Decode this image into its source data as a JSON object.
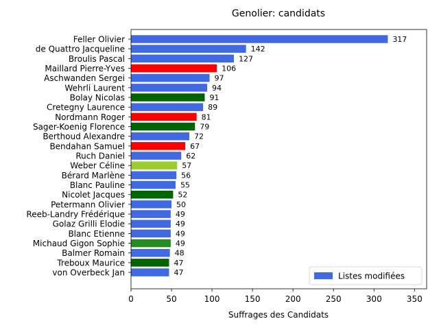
{
  "chart_data": {
    "type": "bar",
    "orientation": "horizontal",
    "title": "Genolier: candidats",
    "xlabel": "Suffrages des Candidats",
    "ylabel": "",
    "xlim": [
      0,
      365
    ],
    "x_ticks": [
      0,
      50,
      100,
      150,
      200,
      250,
      300,
      350
    ],
    "grid": false,
    "legend": {
      "position": "bottom-right",
      "entries": [
        {
          "label": "Listes modifiées",
          "color": "#4169e1"
        }
      ]
    },
    "bars": [
      {
        "name": "Feller Olivier",
        "value": 317,
        "color": "#4169e1"
      },
      {
        "name": "de Quattro Jacqueline",
        "value": 142,
        "color": "#4169e1"
      },
      {
        "name": "Broulis Pascal",
        "value": 127,
        "color": "#4169e1"
      },
      {
        "name": "Maillard Pierre-Yves",
        "value": 106,
        "color": "#ff0000"
      },
      {
        "name": "Aschwanden Sergei",
        "value": 97,
        "color": "#4169e1"
      },
      {
        "name": "Wehrli Laurent",
        "value": 94,
        "color": "#4169e1"
      },
      {
        "name": "Bolay Nicolas",
        "value": 91,
        "color": "#006400"
      },
      {
        "name": "Cretegny Laurence",
        "value": 89,
        "color": "#4169e1"
      },
      {
        "name": "Nordmann Roger",
        "value": 81,
        "color": "#ff0000"
      },
      {
        "name": "Sager-Koenig Florence",
        "value": 79,
        "color": "#006400"
      },
      {
        "name": "Berthoud Alexandre",
        "value": 72,
        "color": "#4169e1"
      },
      {
        "name": "Bendahan Samuel",
        "value": 67,
        "color": "#ff0000"
      },
      {
        "name": "Ruch Daniel",
        "value": 62,
        "color": "#4169e1"
      },
      {
        "name": "Weber Céline",
        "value": 57,
        "color": "#9acd32"
      },
      {
        "name": "Bérard Marlène",
        "value": 56,
        "color": "#4169e1"
      },
      {
        "name": "Blanc Pauline",
        "value": 55,
        "color": "#4169e1"
      },
      {
        "name": "Nicolet Jacques",
        "value": 52,
        "color": "#006400"
      },
      {
        "name": "Petermann Olivier",
        "value": 50,
        "color": "#4169e1"
      },
      {
        "name": "Reeb-Landry Frédérique",
        "value": 49,
        "color": "#4169e1"
      },
      {
        "name": "Golaz Grilli Elodie",
        "value": 49,
        "color": "#4169e1"
      },
      {
        "name": "Blanc Etienne",
        "value": 49,
        "color": "#4169e1"
      },
      {
        "name": "Michaud Gigon Sophie",
        "value": 49,
        "color": "#228b22"
      },
      {
        "name": "Balmer Romain",
        "value": 48,
        "color": "#4169e1"
      },
      {
        "name": "Treboux Maurice",
        "value": 47,
        "color": "#006400"
      },
      {
        "name": "von Overbeck Jan",
        "value": 47,
        "color": "#4169e1"
      }
    ]
  }
}
